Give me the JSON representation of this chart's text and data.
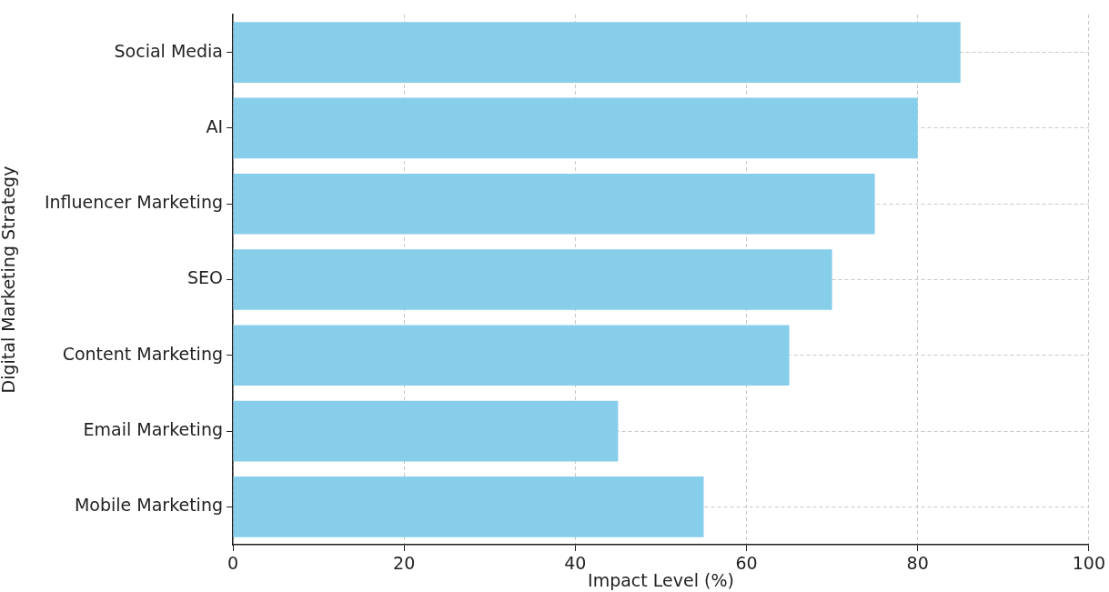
{
  "chart_data": {
    "type": "bar",
    "orientation": "horizontal",
    "xlabel": "Impact Level (%)",
    "ylabel": "Digital Marketing Strategy",
    "categories": [
      "Social Media",
      "AI",
      "Influencer Marketing",
      "SEO",
      "Content Marketing",
      "Email Marketing",
      "Mobile Marketing"
    ],
    "values": [
      85,
      80,
      75,
      70,
      65,
      45,
      55
    ],
    "color": "#87ceeb",
    "xlim": [
      0,
      100
    ],
    "xticks": [
      0,
      20,
      40,
      60,
      80,
      100
    ],
    "grid": true,
    "legend": false
  }
}
